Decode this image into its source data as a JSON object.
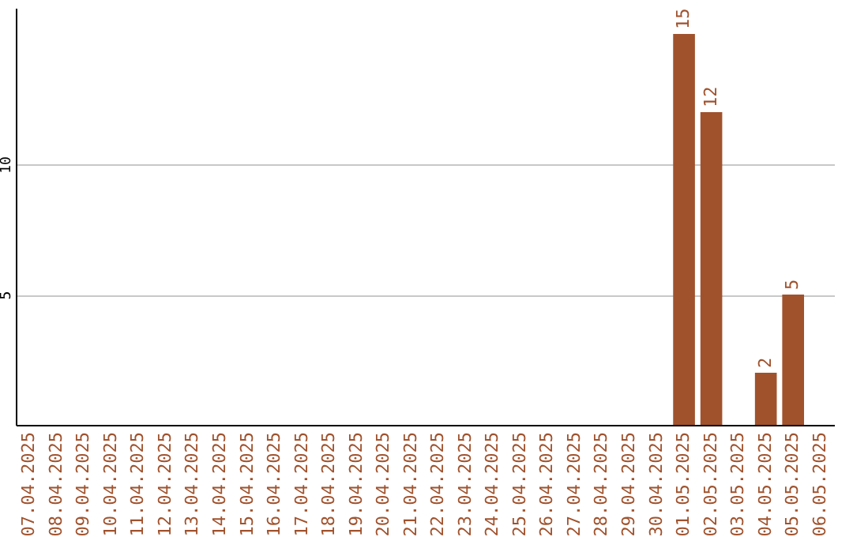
{
  "chart_data": {
    "type": "bar",
    "categories": [
      "07.04.2025",
      "08.04.2025",
      "09.04.2025",
      "10.04.2025",
      "11.04.2025",
      "12.04.2025",
      "13.04.2025",
      "14.04.2025",
      "15.04.2025",
      "16.04.2025",
      "17.04.2025",
      "18.04.2025",
      "19.04.2025",
      "20.04.2025",
      "21.04.2025",
      "22.04.2025",
      "23.04.2025",
      "24.04.2025",
      "25.04.2025",
      "26.04.2025",
      "27.04.2025",
      "28.04.2025",
      "29.04.2025",
      "30.04.2025",
      "01.05.2025",
      "02.05.2025",
      "03.05.2025",
      "04.05.2025",
      "05.05.2025",
      "06.05.2025"
    ],
    "values": [
      0,
      0,
      0,
      0,
      0,
      0,
      0,
      0,
      0,
      0,
      0,
      0,
      0,
      0,
      0,
      0,
      0,
      0,
      0,
      0,
      0,
      0,
      0,
      0,
      15,
      12,
      0,
      2,
      5,
      0
    ],
    "value_labels": [
      null,
      null,
      null,
      null,
      null,
      null,
      null,
      null,
      null,
      null,
      null,
      null,
      null,
      null,
      null,
      null,
      null,
      null,
      null,
      null,
      null,
      null,
      null,
      null,
      "15",
      "12",
      null,
      "2",
      "5",
      null
    ],
    "color": "#a0522d",
    "ylim": [
      0,
      16
    ],
    "yticks": [
      5,
      10
    ],
    "grid": "y"
  }
}
